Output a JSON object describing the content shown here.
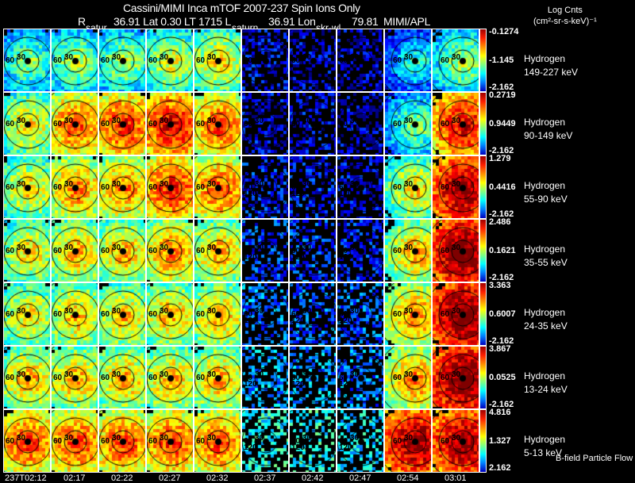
{
  "header": {
    "title": "Cassini/MIMI Inca mTOF  2007-237   Spin   Ions Only",
    "r_label": "R",
    "r_value": "36.91 Lat 0.30 LT 1715 L",
    "l_value": "36.91 Lon",
    "lon_value": "79.81",
    "source": "MIMI/APL",
    "units_line1": "Log Cnts",
    "units_line2": "(cm²-sr-s-keV)⁻¹"
  },
  "overlay_labels": [
    "satur",
    "saturn",
    "skr-wl"
  ],
  "ring_labels": [
    "60",
    "30",
    "120"
  ],
  "footer_label": "B-field Particle Flow",
  "chart_data": {
    "type": "heatmap",
    "title": "Cassini/MIMI Inca mTOF  2007-237   Spin   Ions Only",
    "times": [
      "237T02:12",
      "02:17",
      "02:22",
      "02:27",
      "02:32",
      "02:37",
      "02:42",
      "02:47",
      "02:54",
      "03:01"
    ],
    "colormap_colors": [
      "#a00000",
      "#ff9000",
      "#ffff00",
      "#00ffff",
      "#0000c0"
    ],
    "rows": [
      {
        "species": "Hydrogen",
        "energy": "149-227 keV",
        "max": "-0.1274",
        "mid": "-1.145",
        "min": "-2.162",
        "intensity": [
          0.3,
          0.35,
          0.35,
          0.4,
          0.45,
          0.15,
          0.12,
          0.1,
          0.2,
          0.35
        ]
      },
      {
        "species": "Hydrogen",
        "energy": "90-149 keV",
        "max": "0.2719",
        "mid": "0.9449",
        "min": "-2.162",
        "intensity": [
          0.45,
          0.6,
          0.65,
          0.7,
          0.6,
          0.15,
          0.15,
          0.12,
          0.3,
          0.7
        ]
      },
      {
        "species": "Hydrogen",
        "energy": "55-90 keV",
        "max": "1.279",
        "mid": "0.4416",
        "min": "-2.162",
        "intensity": [
          0.45,
          0.55,
          0.55,
          0.65,
          0.6,
          0.2,
          0.2,
          0.15,
          0.45,
          0.8
        ]
      },
      {
        "species": "Hydrogen",
        "energy": "35-55 keV",
        "max": "2.486",
        "mid": "0.1621",
        "min": "-2.162",
        "intensity": [
          0.45,
          0.5,
          0.5,
          0.55,
          0.5,
          0.25,
          0.25,
          0.2,
          0.5,
          0.85
        ]
      },
      {
        "species": "Hydrogen",
        "energy": "24-35 keV",
        "max": "3.363",
        "mid": "0.6007",
        "min": "-2.162",
        "intensity": [
          0.45,
          0.48,
          0.48,
          0.5,
          0.5,
          0.35,
          0.3,
          0.3,
          0.55,
          0.85
        ]
      },
      {
        "species": "Hydrogen",
        "energy": "13-24 keV",
        "max": "3.867",
        "mid": "0.0525",
        "min": "-2.162",
        "intensity": [
          0.5,
          0.5,
          0.5,
          0.5,
          0.5,
          0.4,
          0.4,
          0.35,
          0.55,
          0.85
        ]
      },
      {
        "species": "Hydrogen",
        "energy": "5-13 keV",
        "max": "4.816",
        "mid": "1.327",
        "min": "2.162",
        "intensity": [
          0.62,
          0.62,
          0.62,
          0.62,
          0.6,
          0.55,
          0.55,
          0.5,
          0.8,
          0.8
        ]
      }
    ]
  }
}
